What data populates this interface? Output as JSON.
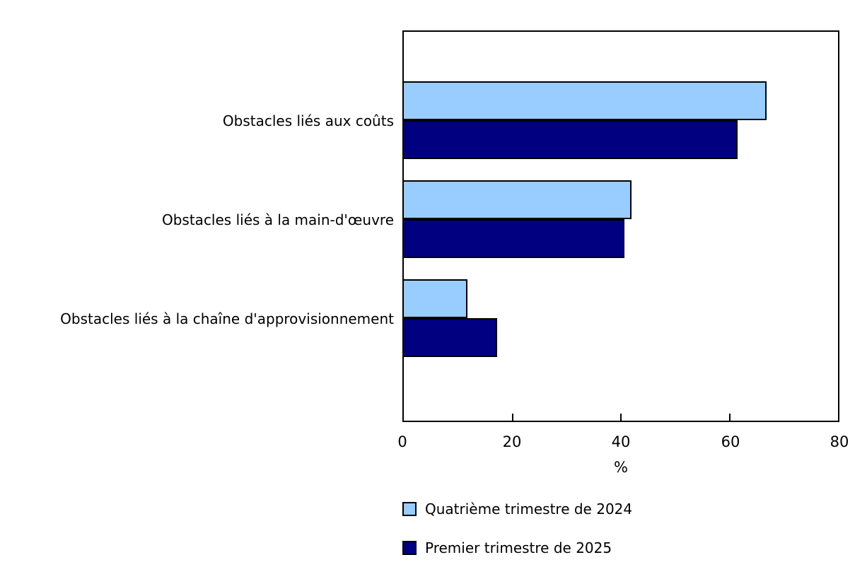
{
  "chart_data": {
    "type": "bar",
    "orientation": "horizontal",
    "title": "",
    "categories": [
      "Obstacles liés aux coûts",
      "Obstacles liés à la main-d'œuvre",
      "Obstacles liés à la chaîne d'approvisionnement"
    ],
    "series": [
      {
        "name": "Quatrième trimestre de 2024",
        "color": "#99CCFF",
        "values": [
          66.8,
          42.0,
          11.7
        ]
      },
      {
        "name": "Premier trimestre de 2025",
        "color": "#000080",
        "values": [
          61.5,
          40.6,
          17.2
        ]
      }
    ],
    "xlabel": "%",
    "xlim": [
      0,
      80
    ],
    "xticks": [
      0,
      20,
      40,
      60,
      80
    ],
    "grid": "off",
    "legend_position": "bottom-left",
    "axis_color": "#000000",
    "bar_border_color": "#000000"
  }
}
